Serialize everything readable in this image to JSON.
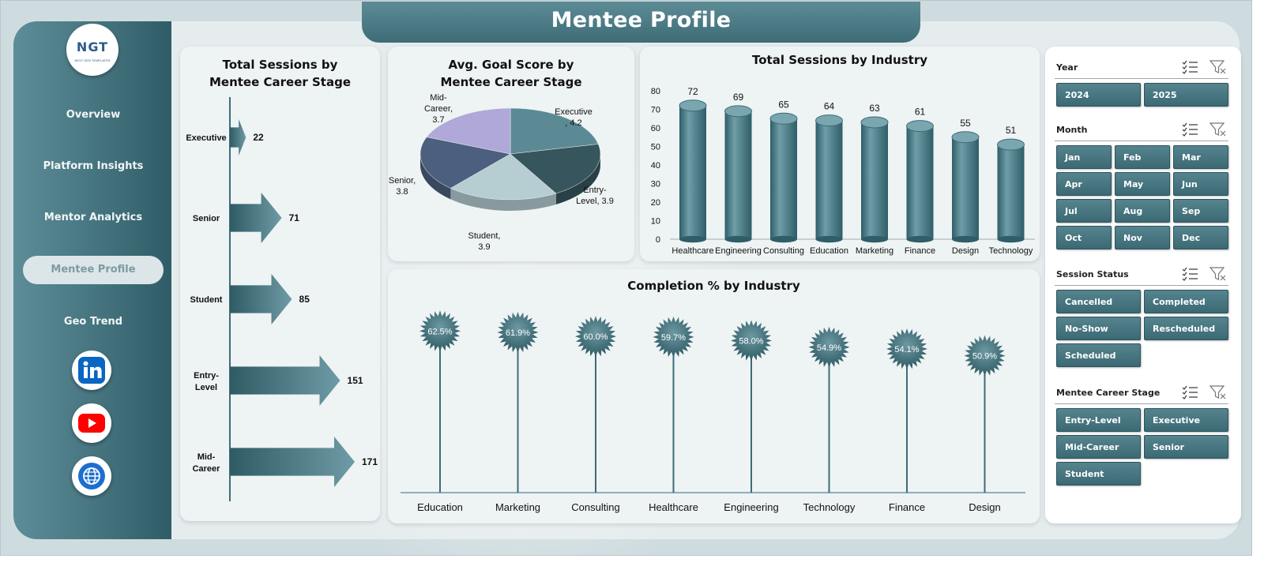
{
  "header": {
    "title": "Mentee Profile"
  },
  "logo": {
    "text": "NGT",
    "subtitle": "NEXT GEN TEMPLATES"
  },
  "nav": [
    {
      "label": "Overview",
      "active": false
    },
    {
      "label": "Platform Insights",
      "active": false
    },
    {
      "label": "Mentor Analytics",
      "active": false
    },
    {
      "label": "Mentee Profile",
      "active": true
    },
    {
      "label": "Geo Trend",
      "active": false
    }
  ],
  "social": [
    {
      "icon": "linkedin-icon",
      "color": "#0a66c2"
    },
    {
      "icon": "youtube-icon",
      "color": "#ff0000"
    },
    {
      "icon": "globe-icon",
      "color": "#1c6fd1"
    }
  ],
  "colors": {
    "accent": "#3d6c77",
    "accent_light": "#5d8c96",
    "panel": "#eef3f4"
  },
  "chart_data": [
    {
      "type": "bar",
      "orientation": "horizontal",
      "title": "Total Sessions by Mentee Career Stage",
      "categories": [
        "Executive",
        "Senior",
        "Student",
        "Entry-Level",
        "Mid-Career"
      ],
      "category_lines": [
        [
          "Executive"
        ],
        [
          "Senior"
        ],
        [
          "Student"
        ],
        [
          "Entry-",
          "Level"
        ],
        [
          "Mid-",
          "Career"
        ]
      ],
      "values": [
        22,
        71,
        85,
        151,
        171
      ]
    },
    {
      "type": "pie",
      "title": "Avg. Goal Score by Mentee Career Stage",
      "slices": [
        {
          "label": "Executive",
          "label_lines": [
            "Executive",
            ", 4.2"
          ],
          "value": 4.2,
          "color": "#5b8a94"
        },
        {
          "label": "Entry-Level",
          "label_lines": [
            "Entry-",
            "Level, 3.9"
          ],
          "value": 3.9,
          "color": "#36555d"
        },
        {
          "label": "Student",
          "label_lines": [
            "Student,",
            "3.9"
          ],
          "value": 3.9,
          "color": "#b6cdd2"
        },
        {
          "label": "Senior",
          "label_lines": [
            "Senior,",
            "3.8"
          ],
          "value": 3.8,
          "color": "#4c5f7e"
        },
        {
          "label": "Mid-Career",
          "label_lines": [
            "Mid-",
            "Career,",
            "3.7"
          ],
          "value": 3.7,
          "color": "#b0a8d8"
        }
      ]
    },
    {
      "type": "bar",
      "title": "Total Sessions by Industry",
      "categories": [
        "Healthcare",
        "Engineering",
        "Consulting",
        "Education",
        "Marketing",
        "Finance",
        "Design",
        "Technology"
      ],
      "values": [
        72,
        69,
        65,
        64,
        63,
        61,
        55,
        51
      ],
      "ylim": [
        0,
        80
      ],
      "yticks": [
        "0",
        "10",
        "20",
        "30",
        "40",
        "50",
        "60",
        "70",
        "80"
      ]
    },
    {
      "type": "lollipop",
      "title": "Completion % by Industry",
      "categories": [
        "Education",
        "Marketing",
        "Consulting",
        "Healthcare",
        "Engineering",
        "Technology",
        "Finance",
        "Design"
      ],
      "values": [
        62.5,
        61.9,
        60.0,
        59.7,
        58.0,
        54.9,
        54.1,
        50.9
      ],
      "value_labels": [
        "62.5%",
        "61.9%",
        "60.0%",
        "59.7%",
        "58.0%",
        "54.9%",
        "54.1%",
        "50.9%"
      ]
    }
  ],
  "slicers": [
    {
      "title": "Year",
      "columns": 2,
      "items": [
        "2024",
        "2025"
      ]
    },
    {
      "title": "Month",
      "columns": 3,
      "items": [
        "Jan",
        "Feb",
        "Mar",
        "Apr",
        "May",
        "Jun",
        "Jul",
        "Aug",
        "Sep",
        "Oct",
        "Nov",
        "Dec"
      ]
    },
    {
      "title": "Session Status",
      "columns": 2,
      "items": [
        "Cancelled",
        "Completed",
        "No-Show",
        "Rescheduled",
        "Scheduled"
      ]
    },
    {
      "title": "Mentee Career Stage",
      "columns": 2,
      "items": [
        "Entry-Level",
        "Executive",
        "Mid-Career",
        "Senior",
        "Student"
      ]
    }
  ]
}
